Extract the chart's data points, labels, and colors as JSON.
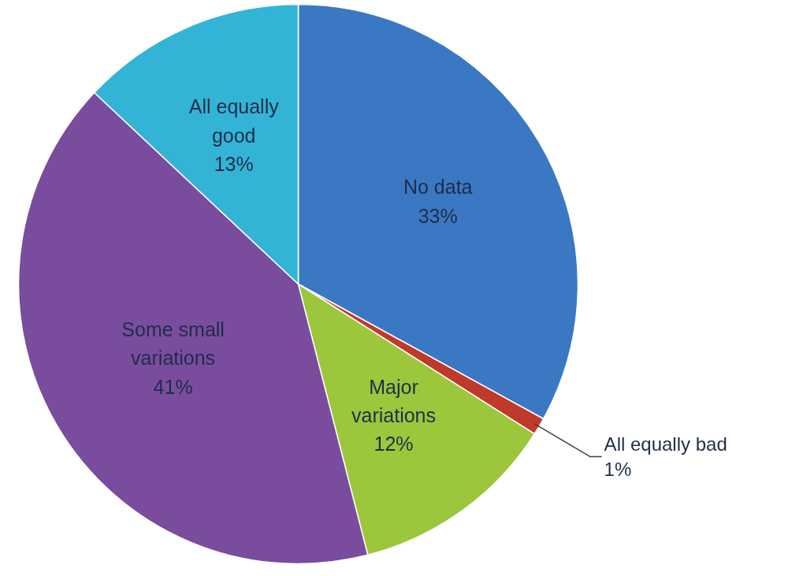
{
  "chart_data": {
    "type": "pie",
    "categories": [
      "No data",
      "All equally bad",
      "Major variations",
      "Some small variations",
      "All equally good"
    ],
    "values": [
      33,
      1,
      12,
      41,
      13
    ],
    "value_labels": [
      "33%",
      "1%",
      "12%",
      "41%",
      "13%"
    ],
    "colors": [
      "#3b78c3",
      "#c0392b",
      "#9cc63b",
      "#7a4c9e",
      "#33b4d6"
    ],
    "legend": false
  }
}
